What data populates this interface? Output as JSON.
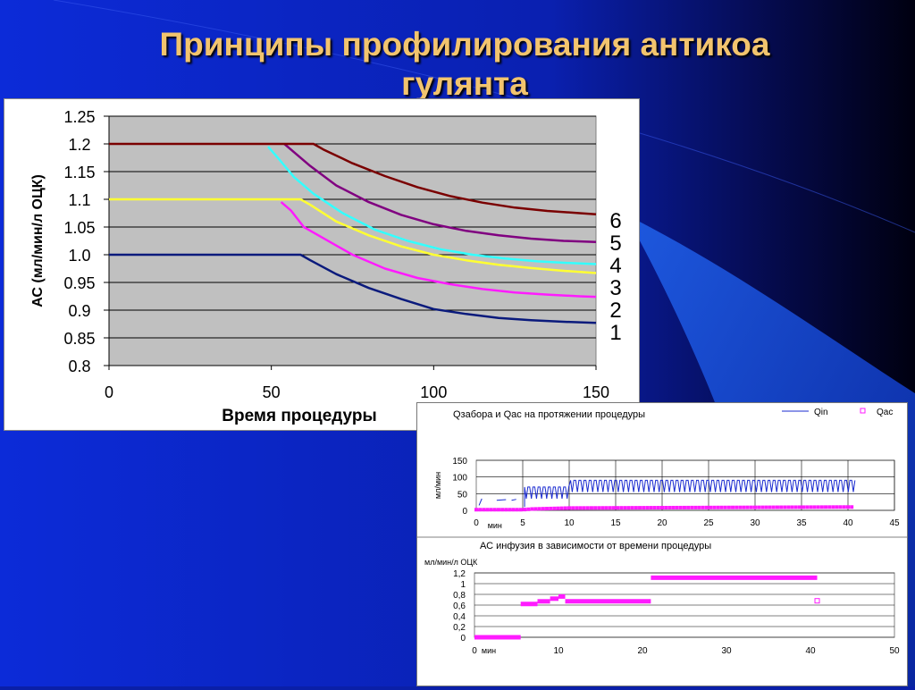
{
  "slide": {
    "title_line1": "Принципы профилирования антикоа",
    "title_line2": "гулянта"
  },
  "chart_data": [
    {
      "type": "line",
      "ylabel": "АС (мл/мин/л ОЦК)",
      "xlabel": "Время процедуры",
      "xlim": [
        0,
        150
      ],
      "ylim": [
        0.8,
        1.25
      ],
      "x_ticks": [
        "0",
        "50",
        "100",
        "150"
      ],
      "y_ticks": [
        "0.8",
        "0.85",
        "0.9",
        "0.95",
        "1.0",
        "1.05",
        "1.1",
        "1.15",
        "1.2",
        "1.25"
      ],
      "grid": true,
      "plot_background": "#c0c0c0",
      "series": [
        {
          "name": "1",
          "color": "#0a1a7c",
          "points": [
            [
              0,
              1.0
            ],
            [
              59,
              1.0
            ],
            [
              62,
              0.99
            ],
            [
              70,
              0.965
            ],
            [
              80,
              0.94
            ],
            [
              90,
              0.92
            ],
            [
              100,
              0.902
            ],
            [
              110,
              0.893
            ],
            [
              120,
              0.886
            ],
            [
              130,
              0.882
            ],
            [
              140,
              0.879
            ],
            [
              150,
              0.877
            ]
          ]
        },
        {
          "name": "2",
          "color": "#ff1bff",
          "points": [
            [
              53,
              1.095
            ],
            [
              56,
              1.08
            ],
            [
              60,
              1.05
            ],
            [
              66,
              1.03
            ],
            [
              75,
              1.0
            ],
            [
              85,
              0.975
            ],
            [
              95,
              0.958
            ],
            [
              105,
              0.947
            ],
            [
              115,
              0.938
            ],
            [
              125,
              0.932
            ],
            [
              135,
              0.928
            ],
            [
              145,
              0.925
            ],
            [
              150,
              0.924
            ]
          ]
        },
        {
          "name": "3",
          "color": "#ffff33",
          "points": [
            [
              0,
              1.1
            ],
            [
              59,
              1.1
            ],
            [
              62,
              1.09
            ],
            [
              70,
              1.06
            ],
            [
              80,
              1.035
            ],
            [
              90,
              1.015
            ],
            [
              100,
              1.0
            ],
            [
              110,
              0.99
            ],
            [
              120,
              0.982
            ],
            [
              130,
              0.976
            ],
            [
              140,
              0.971
            ],
            [
              150,
              0.967
            ]
          ]
        },
        {
          "name": "4",
          "color": "#33ffff",
          "points": [
            [
              49,
              1.195
            ],
            [
              52,
              1.175
            ],
            [
              57,
              1.14
            ],
            [
              63,
              1.11
            ],
            [
              72,
              1.075
            ],
            [
              82,
              1.045
            ],
            [
              92,
              1.025
            ],
            [
              102,
              1.01
            ],
            [
              112,
              1.0
            ],
            [
              122,
              0.993
            ],
            [
              132,
              0.988
            ],
            [
              142,
              0.985
            ],
            [
              150,
              0.983
            ]
          ]
        },
        {
          "name": "5",
          "color": "#800080",
          "points": [
            [
              54,
              1.2
            ],
            [
              57,
              1.185
            ],
            [
              62,
              1.16
            ],
            [
              70,
              1.125
            ],
            [
              80,
              1.095
            ],
            [
              90,
              1.072
            ],
            [
              100,
              1.055
            ],
            [
              110,
              1.043
            ],
            [
              120,
              1.035
            ],
            [
              130,
              1.029
            ],
            [
              140,
              1.025
            ],
            [
              150,
              1.023
            ]
          ]
        },
        {
          "name": "6",
          "color": "#7a0000",
          "points": [
            [
              0,
              1.2
            ],
            [
              63,
              1.2
            ],
            [
              66,
              1.19
            ],
            [
              75,
              1.165
            ],
            [
              85,
              1.142
            ],
            [
              95,
              1.122
            ],
            [
              105,
              1.106
            ],
            [
              115,
              1.094
            ],
            [
              125,
              1.085
            ],
            [
              135,
              1.079
            ],
            [
              145,
              1.075
            ],
            [
              150,
              1.073
            ]
          ]
        }
      ],
      "right_labels": [
        "6",
        "5",
        "4",
        "3",
        "2",
        "1"
      ]
    },
    {
      "type": "line",
      "title": "Qзабора и Qac на протяжении процедуры",
      "ylabel": "мл/мин",
      "x_unit_label": "мин",
      "xlim": [
        0,
        45
      ],
      "ylim": [
        0,
        150
      ],
      "x_ticks": [
        "0",
        "5",
        "10",
        "15",
        "20",
        "25",
        "30",
        "35",
        "40",
        "45"
      ],
      "y_ticks": [
        "0",
        "50",
        "100",
        "150"
      ],
      "legend": {
        "position": "top-right",
        "items": [
          {
            "name": "Qin",
            "color": "#1a2bd0"
          },
          {
            "name": "Qac",
            "color": "#ff1bff"
          }
        ]
      },
      "series": [
        {
          "name": "Qin",
          "color": "#1a2bd0",
          "pattern": "baseline ~90 with periodic dips to ~55, from x=5 to x=40.7; sparse low readings 0–5"
        },
        {
          "name": "Qac",
          "color": "#ff1bff",
          "points": [
            [
              0,
              2
            ],
            [
              5,
              2
            ],
            [
              6,
              4
            ],
            [
              10,
              7
            ],
            [
              20,
              8
            ],
            [
              30,
              9
            ],
            [
              40,
              10
            ],
            [
              40.7,
              10
            ]
          ]
        }
      ]
    },
    {
      "type": "scatter",
      "title": "АС инфузия в зависимости от времени процедуры",
      "ylabel": "мл/мин/л ОЦК",
      "x_unit_label": "мин",
      "xlim": [
        0,
        50
      ],
      "ylim": [
        0,
        1.2
      ],
      "x_ticks": [
        "0",
        "10",
        "20",
        "30",
        "40",
        "50"
      ],
      "y_ticks": [
        "0",
        "0,2",
        "0,4",
        "0,6",
        "0,8",
        "1",
        "1,2"
      ],
      "series": [
        {
          "name": "Qac",
          "color": "#ff1bff",
          "segments": [
            {
              "x": [
                0,
                5.5
              ],
              "y": 0.0
            },
            {
              "x": [
                5.5,
                7.5
              ],
              "y": 0.62
            },
            {
              "x": [
                7.5,
                9
              ],
              "y": 0.67
            },
            {
              "x": [
                9,
                10
              ],
              "y": 0.72
            },
            {
              "x": [
                10,
                10.8
              ],
              "y": 0.76
            },
            {
              "x": [
                10.8,
                21
              ],
              "y": 0.67
            },
            {
              "x": [
                21,
                40.8
              ],
              "y": 1.11
            }
          ],
          "points": [
            [
              40.8,
              0.68
            ]
          ]
        }
      ]
    }
  ]
}
